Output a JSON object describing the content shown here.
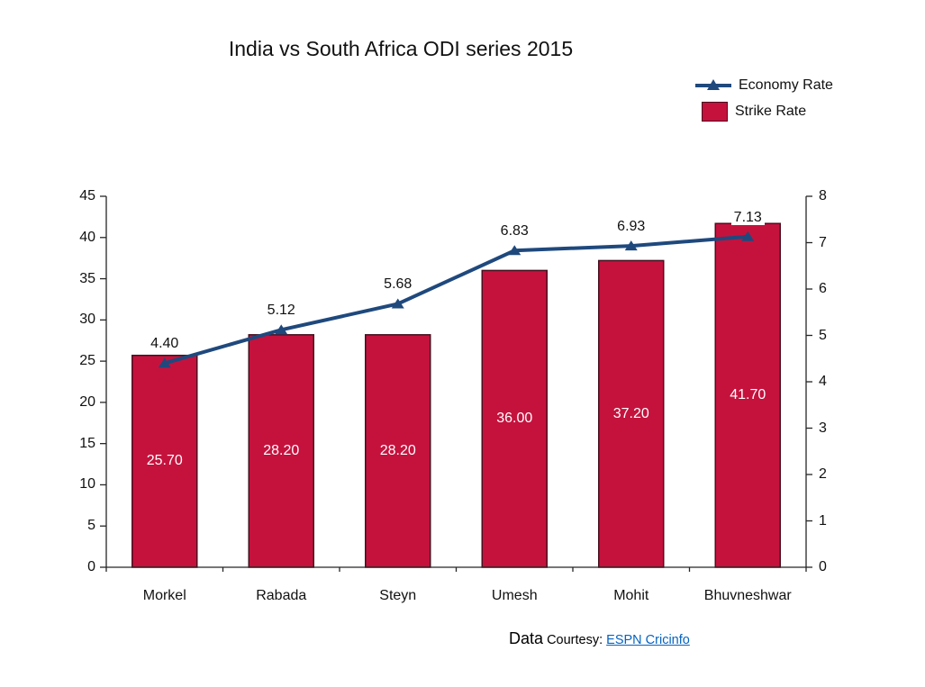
{
  "title": "India vs South Africa ODI series 2015",
  "legend": [
    {
      "label": "Economy Rate",
      "symbol": "line-triangle-marker"
    },
    {
      "label": "Strike Rate",
      "symbol": "red-square"
    }
  ],
  "footer": {
    "word1": "Data",
    "word2": "Courtesy:",
    "link_text": "ESPN Cricinfo"
  },
  "colors": {
    "bar_fill": "#C5123D",
    "bar_border": "#46101F",
    "line": "#1F497D",
    "axis": "#262626",
    "bar_label": "#FFFFFF",
    "link": "#0563C1"
  },
  "chart_data": {
    "type": "combo",
    "title": "India vs South Africa ODI series 2015",
    "categories": [
      "Morkel",
      "Rabada",
      "Steyn",
      "Umesh",
      "Mohit",
      "Bhuvneshwar"
    ],
    "series": [
      {
        "name": "Strike Rate",
        "type": "bar",
        "axis": "left",
        "values": [
          25.7,
          28.2,
          28.2,
          36.0,
          37.2,
          41.7
        ],
        "labels": [
          "25.70",
          "28.20",
          "28.20",
          "36.00",
          "37.20",
          "41.70"
        ],
        "label_position": "inside-center",
        "color": "#C5123D"
      },
      {
        "name": "Economy Rate",
        "type": "line",
        "axis": "right",
        "values": [
          4.4,
          5.12,
          5.68,
          6.83,
          6.93,
          7.13
        ],
        "labels": [
          "4.40",
          "5.12",
          "5.68",
          "6.83",
          "6.93",
          "7.13"
        ],
        "label_position": "above",
        "marker": "triangle-up",
        "color": "#1F497D"
      }
    ],
    "left_axis": {
      "min": 0,
      "max": 45,
      "step": 5,
      "tick_labels": [
        "0",
        "5",
        "10",
        "15",
        "20",
        "25",
        "30",
        "35",
        "40",
        "45"
      ]
    },
    "right_axis": {
      "min": 0,
      "max": 8,
      "step": 1,
      "tick_labels": [
        "0",
        "1",
        "2",
        "3",
        "4",
        "5",
        "6",
        "7",
        "8"
      ]
    },
    "grid": false,
    "legend_position": "top-right"
  }
}
